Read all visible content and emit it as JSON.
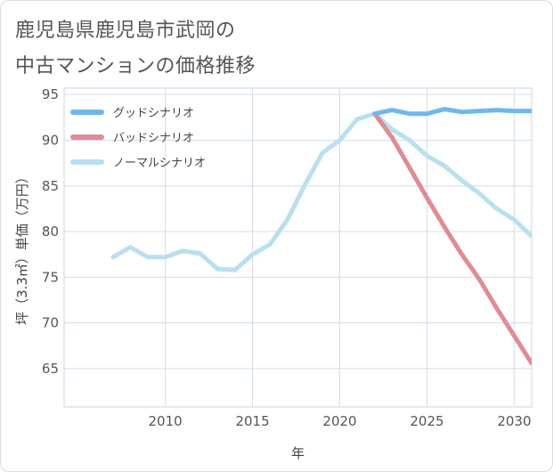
{
  "title": [
    "鹿児島県鹿児島市武岡の",
    "中古マンションの価格推移"
  ],
  "chart_data": {
    "type": "line",
    "xlabel": "年",
    "ylabel": "坪（3.3㎡）単価（万円）",
    "xlim": [
      2004.2,
      2031
    ],
    "ylim": [
      60.8,
      95.7
    ],
    "xticks": [
      2010,
      2015,
      2020,
      2025,
      2030
    ],
    "yticks": [
      65,
      70,
      75,
      80,
      85,
      90,
      95
    ],
    "grid": true,
    "legend_position": "top-left",
    "series": [
      {
        "name": "グッドシナリオ",
        "color": "#6cb8ee",
        "x": [
          2022,
          2023,
          2024,
          2025,
          2026,
          2027,
          2028,
          2029,
          2030,
          2031
        ],
        "y": [
          92.9,
          93.3,
          92.9,
          92.9,
          93.4,
          93.1,
          93.2,
          93.3,
          93.2,
          93.2
        ]
      },
      {
        "name": "バッドシナリオ",
        "color": "#de8c95",
        "x": [
          2022,
          2023,
          2024,
          2025,
          2026,
          2027,
          2028,
          2029,
          2030,
          2031
        ],
        "y": [
          92.9,
          90.3,
          87.0,
          83.7,
          80.5,
          77.5,
          74.8,
          71.6,
          68.6,
          65.6
        ]
      },
      {
        "name": "ノーマルシナリオ",
        "color": "#b9dff0",
        "x": [
          2007,
          2008,
          2009,
          2010,
          2011,
          2012,
          2013,
          2014,
          2015,
          2016,
          2017,
          2018,
          2019,
          2020,
          2021,
          2022,
          2023,
          2024,
          2025,
          2026,
          2027,
          2028,
          2029,
          2030,
          2031
        ],
        "y": [
          77.2,
          78.3,
          77.2,
          77.2,
          77.9,
          77.6,
          75.9,
          75.8,
          77.5,
          78.6,
          81.3,
          85.1,
          88.6,
          90.0,
          92.3,
          92.9,
          91.2,
          90.0,
          88.3,
          87.2,
          85.6,
          84.2,
          82.5,
          81.3,
          79.5
        ]
      }
    ]
  }
}
